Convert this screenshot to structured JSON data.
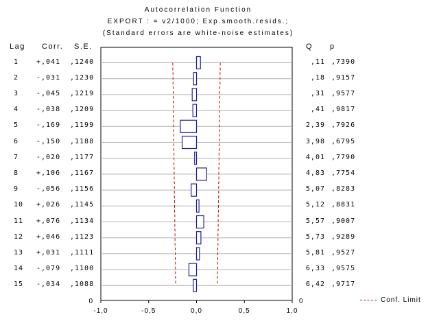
{
  "chart_data": {
    "type": "bar",
    "title": "Autocorrelation Function",
    "subtitle_1": "EXPORT   : = v2/1000; Exp.smooth.resids.;",
    "subtitle_2": "(Standard errors are white-noise estimates)",
    "headers": {
      "lag": "Lag",
      "corr": "Corr.",
      "se": "S.E.",
      "q": "Q",
      "p": "p"
    },
    "lags": [
      "1",
      "2",
      "3",
      "4",
      "5",
      "6",
      "7",
      "8",
      "9",
      "10",
      "11",
      "12",
      "13",
      "14",
      "15"
    ],
    "corr_labels": [
      "+,041",
      "-,031",
      "-,045",
      "-,038",
      "-,169",
      "-,150",
      "-,020",
      "+,106",
      "-,056",
      "+,026",
      "+,076",
      "+,046",
      "+,031",
      "-,079",
      "-,034"
    ],
    "corr": [
      0.041,
      -0.031,
      -0.045,
      -0.038,
      -0.169,
      -0.15,
      -0.02,
      0.106,
      -0.056,
      0.026,
      0.076,
      0.046,
      0.031,
      -0.079,
      -0.034
    ],
    "se_labels": [
      ",1240",
      ",1230",
      ",1219",
      ",1209",
      ",1199",
      ",1188",
      ",1177",
      ",1167",
      ",1156",
      ",1145",
      ",1134",
      ",1123",
      ",1111",
      ",1100",
      ",1088"
    ],
    "se": [
      0.124,
      0.123,
      0.1219,
      0.1209,
      0.1199,
      0.1188,
      0.1177,
      0.1167,
      0.1156,
      0.1145,
      0.1134,
      0.1123,
      0.1111,
      0.11,
      0.1088
    ],
    "q_labels": [
      ",11",
      ",18",
      ",31",
      ",41",
      "2,39",
      "3,98",
      "4,01",
      "4,83",
      "5,07",
      "5,12",
      "5,57",
      "5,73",
      "5,81",
      "6,33",
      "6,42"
    ],
    "p_labels": [
      ",7390",
      ",9157",
      ",9577",
      ",9817",
      ",7926",
      ",6795",
      ",7790",
      ",7754",
      ",8283",
      ",8831",
      ",9007",
      ",9289",
      ",9527",
      ",9575",
      ",9717"
    ],
    "xlim": [
      -1.0,
      1.0
    ],
    "x_ticks": [
      "-1,0",
      "-0,5",
      "0,0",
      "0,5",
      "1,0"
    ],
    "x_tick_values": [
      -1.0,
      -0.5,
      0.0,
      0.5,
      1.0
    ],
    "zero_label_left": "0",
    "zero_label_right": "0",
    "legend": "Conf. Limit",
    "colors": {
      "bar": "#1f1fa0",
      "limit": "#cc0000",
      "grid": "#b0b0b0"
    }
  }
}
